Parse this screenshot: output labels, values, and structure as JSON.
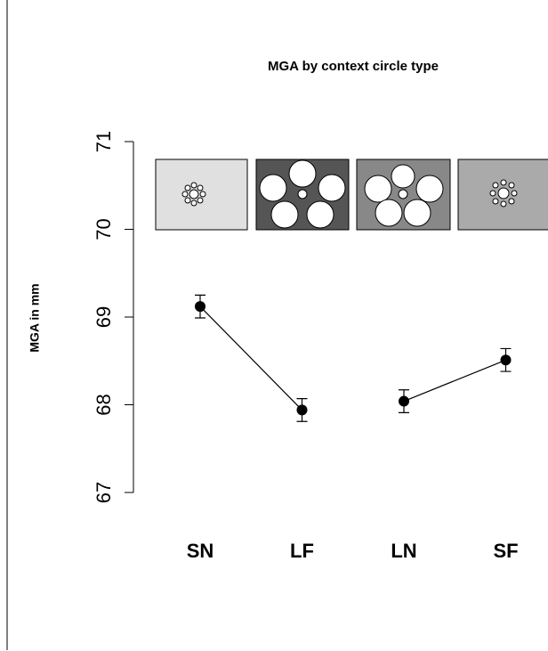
{
  "chart_data": {
    "type": "line",
    "title": "MGA by context circle type",
    "y_label": "MGA in mm",
    "categories": [
      "SN",
      "LF",
      "LN",
      "SF"
    ],
    "series": [
      {
        "color": "#000000",
        "values": [
          69.12,
          67.94,
          null,
          null
        ],
        "errors": [
          0.13,
          0.13,
          null,
          null
        ]
      },
      {
        "color": "#000000",
        "values": [
          null,
          null,
          68.04,
          68.51
        ],
        "errors": [
          null,
          null,
          0.13,
          0.13
        ]
      }
    ],
    "ylim": [
      67,
      71
    ],
    "yticks": [
      67,
      68,
      69,
      70,
      71
    ]
  }
}
